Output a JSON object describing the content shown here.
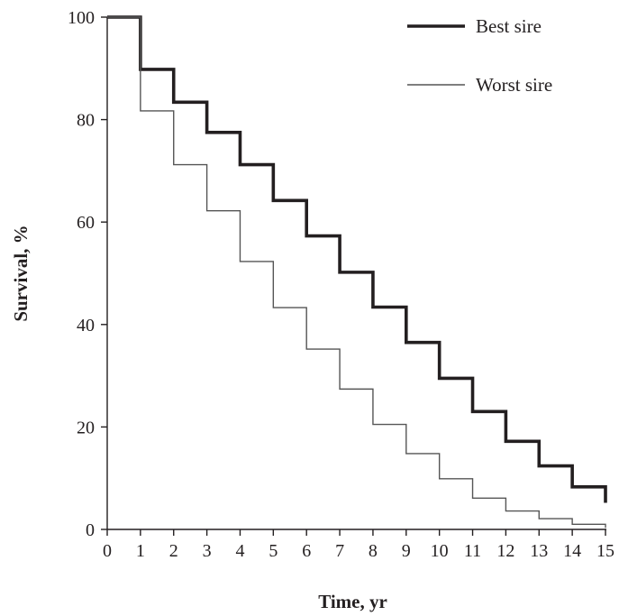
{
  "chart_data": {
    "type": "line",
    "step": true,
    "xlabel": "Time, yr",
    "ylabel": "Survival, %",
    "xlim": [
      0,
      15
    ],
    "ylim": [
      0,
      100
    ],
    "xticks": [
      "0",
      "1",
      "2",
      "3",
      "4",
      "5",
      "6",
      "7",
      "8",
      "9",
      "10",
      "11",
      "12",
      "13",
      "14",
      "15"
    ],
    "yticks": [
      "0",
      "20",
      "40",
      "60",
      "80",
      "100"
    ],
    "grid": false,
    "legend_position": "top-right",
    "x": [
      0,
      1,
      2,
      3,
      4,
      5,
      6,
      7,
      8,
      9,
      10,
      11,
      12,
      13,
      14,
      15
    ],
    "series": [
      {
        "name": "Best sire",
        "color": "#231f20",
        "style": "thick",
        "values": [
          100,
          89.8,
          83.4,
          77.5,
          71.2,
          64.2,
          57.3,
          50.2,
          43.4,
          36.5,
          29.5,
          23.0,
          17.2,
          12.4,
          8.3,
          5.2
        ]
      },
      {
        "name": "Worst sire",
        "color": "#555555",
        "style": "thin",
        "values": [
          100,
          81.7,
          71.2,
          62.2,
          52.3,
          43.3,
          35.2,
          27.4,
          20.5,
          14.8,
          9.9,
          6.1,
          3.6,
          2.1,
          1.0,
          0.3
        ]
      }
    ]
  }
}
